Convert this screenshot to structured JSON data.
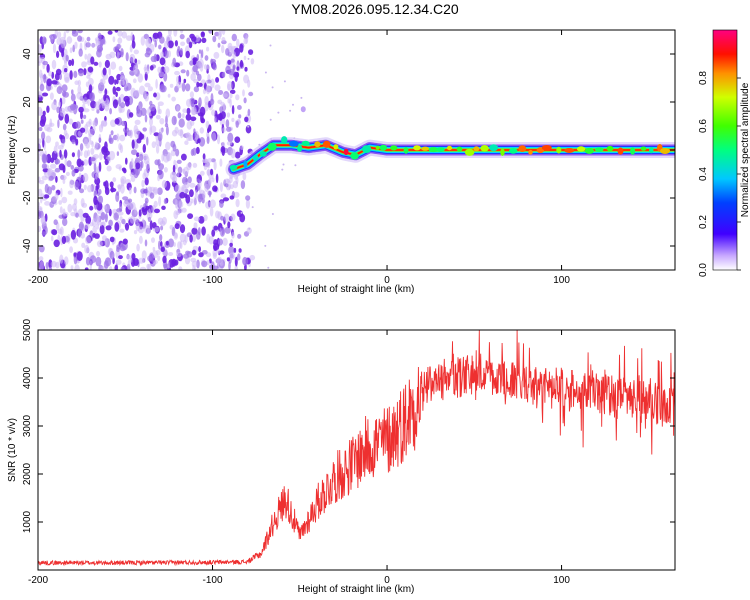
{
  "title": "YM08.2026.095.12.34.C20",
  "chart_data": [
    {
      "id": "spectrogram",
      "type": "heatmap",
      "xlabel": "Height of straight line (km)",
      "ylabel": "Frequency (Hz)",
      "xlim": [
        -200,
        165
      ],
      "ylim": [
        -50,
        50
      ],
      "xticks": [
        -200,
        -100,
        0,
        100
      ],
      "yticks": [
        -40,
        -20,
        0,
        20,
        40
      ],
      "noise_region": {
        "x": [
          -200,
          -85
        ]
      },
      "ridge": [
        {
          "x": -88,
          "y": -8
        },
        {
          "x": -80,
          "y": -6
        },
        {
          "x": -73,
          "y": -2
        },
        {
          "x": -65,
          "y": 2
        },
        {
          "x": -55,
          "y": 2
        },
        {
          "x": -45,
          "y": 1
        },
        {
          "x": -35,
          "y": 2
        },
        {
          "x": -25,
          "y": -1
        },
        {
          "x": -18,
          "y": -2
        },
        {
          "x": -10,
          "y": 1
        },
        {
          "x": 0,
          "y": 0
        },
        {
          "x": 30,
          "y": 0
        },
        {
          "x": 60,
          "y": 0
        },
        {
          "x": 90,
          "y": 0
        },
        {
          "x": 115,
          "y": 0
        },
        {
          "x": 135,
          "y": 0
        },
        {
          "x": 150,
          "y": 0
        },
        {
          "x": 165,
          "y": 0
        }
      ],
      "colorbar": {
        "label": "Normalized spectral amplitude",
        "range": [
          0,
          1
        ],
        "ticks": [
          "0.0",
          "0.2",
          "0.4",
          "0.6",
          "0.8"
        ],
        "tick_values": [
          0,
          0.2,
          0.4,
          0.6,
          0.8
        ]
      }
    },
    {
      "id": "snr",
      "type": "line",
      "xlabel": "Height of straight line (km)",
      "ylabel": "SNR (10 * v/v)",
      "xlim": [
        -200,
        165
      ],
      "ylim": [
        0,
        5000
      ],
      "xticks": [
        -200,
        -100,
        0,
        100
      ],
      "yticks": [
        1000,
        2000,
        3000,
        4000,
        5000
      ],
      "series": [
        {
          "name": "SNR",
          "color": "#ee3030",
          "envelope": [
            {
              "x": -200,
              "y": 150
            },
            {
              "x": -150,
              "y": 150
            },
            {
              "x": -100,
              "y": 160
            },
            {
              "x": -80,
              "y": 170
            },
            {
              "x": -72,
              "y": 350
            },
            {
              "x": -65,
              "y": 1000
            },
            {
              "x": -58,
              "y": 1500
            },
            {
              "x": -50,
              "y": 700
            },
            {
              "x": -40,
              "y": 1400
            },
            {
              "x": -30,
              "y": 1900
            },
            {
              "x": -20,
              "y": 2200
            },
            {
              "x": -10,
              "y": 2600
            },
            {
              "x": 0,
              "y": 2700
            },
            {
              "x": 10,
              "y": 3100
            },
            {
              "x": 20,
              "y": 3700
            },
            {
              "x": 30,
              "y": 4000
            },
            {
              "x": 50,
              "y": 4050
            },
            {
              "x": 80,
              "y": 3900
            },
            {
              "x": 100,
              "y": 3800
            },
            {
              "x": 120,
              "y": 3700
            },
            {
              "x": 140,
              "y": 3600
            },
            {
              "x": 165,
              "y": 3400
            }
          ]
        }
      ]
    }
  ]
}
